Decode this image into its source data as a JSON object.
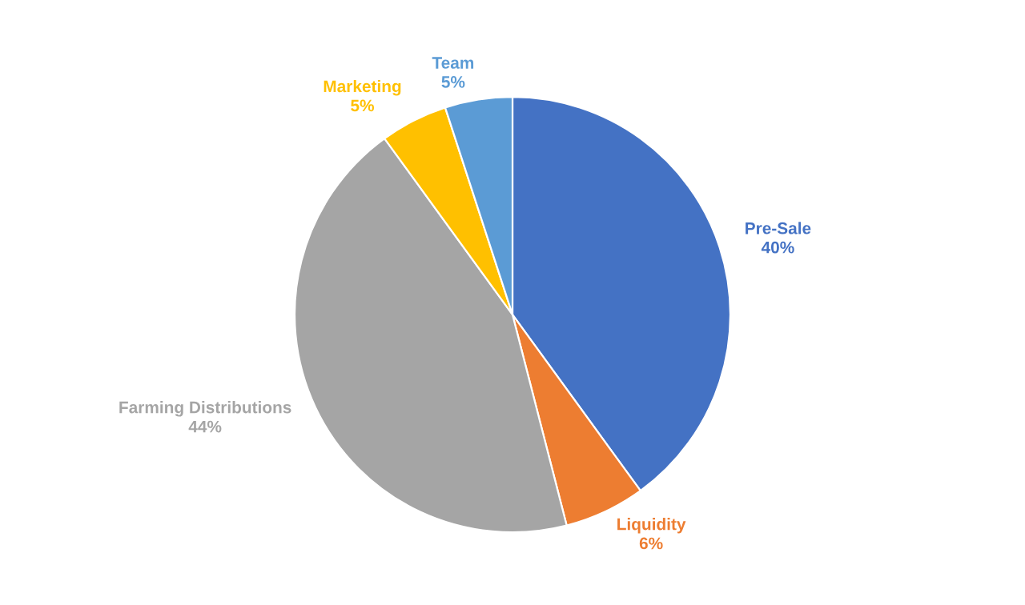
{
  "chart_data": {
    "type": "pie",
    "categories": [
      "Pre-Sale",
      "Liquidity",
      "Farming Distributions",
      "Marketing",
      "Team"
    ],
    "values": [
      40,
      6,
      44,
      5,
      5
    ],
    "colors": [
      "#4472c4",
      "#ed7d31",
      "#a5a5a5",
      "#ffc000",
      "#5b9bd5"
    ],
    "value_labels": [
      "40%",
      "6%",
      "44%",
      "5%",
      "5%"
    ],
    "legend": false
  }
}
